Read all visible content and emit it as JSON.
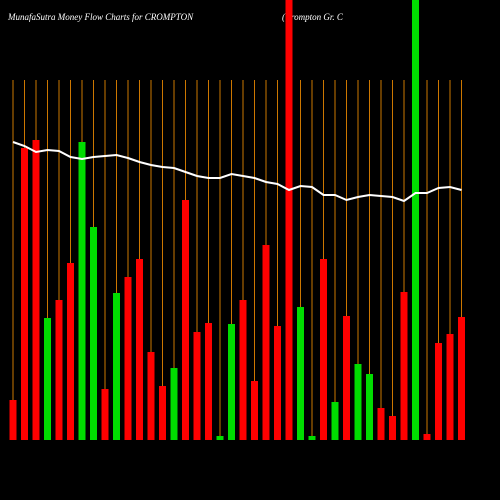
{
  "chart_data": {
    "type": "bar",
    "title": "MunafaSutra  Money Flow  Charts for CROMPTON",
    "subtitle": "(Crompton  Gr.  C",
    "ylim": [
      0,
      440
    ],
    "series": [
      {
        "type": "bar",
        "values": [
          40,
          292,
          300,
          122,
          140,
          177,
          298,
          213,
          51,
          147,
          163,
          181,
          88,
          54,
          72,
          240,
          108,
          117,
          4,
          116,
          140,
          59,
          195,
          114,
          440,
          133,
          4,
          181,
          38,
          124,
          76,
          66,
          32,
          24,
          148,
          440,
          6,
          97,
          106,
          123
        ],
        "colors": [
          "#ff0000",
          "#ff0000",
          "#ff0000",
          "#00dd00",
          "#ff0000",
          "#ff0000",
          "#00dd00",
          "#00dd00",
          "#ff0000",
          "#00dd00",
          "#ff0000",
          "#ff0000",
          "#ff0000",
          "#ff0000",
          "#00dd00",
          "#ff0000",
          "#ff0000",
          "#ff0000",
          "#00dd00",
          "#00dd00",
          "#ff0000",
          "#ff0000",
          "#ff0000",
          "#ff0000",
          "#ff0000",
          "#00dd00",
          "#00dd00",
          "#ff0000",
          "#00dd00",
          "#ff0000",
          "#00dd00",
          "#00dd00",
          "#ff0000",
          "#ff0000",
          "#ff0000",
          "#00dd00",
          "#ff0000",
          "#ff0000",
          "#ff0000",
          "#ff0000"
        ]
      },
      {
        "type": "line",
        "color": "#ffffff",
        "values": [
          298,
          294,
          288,
          290,
          289,
          283,
          281,
          283,
          284,
          285,
          282,
          278,
          275,
          273,
          272,
          268,
          264,
          262,
          262,
          266,
          264,
          262,
          258,
          256,
          250,
          254,
          253,
          245,
          245,
          240,
          243,
          245,
          244,
          243,
          239,
          247,
          247,
          252,
          253,
          250
        ]
      }
    ],
    "gridline_color": "#cc7700"
  }
}
